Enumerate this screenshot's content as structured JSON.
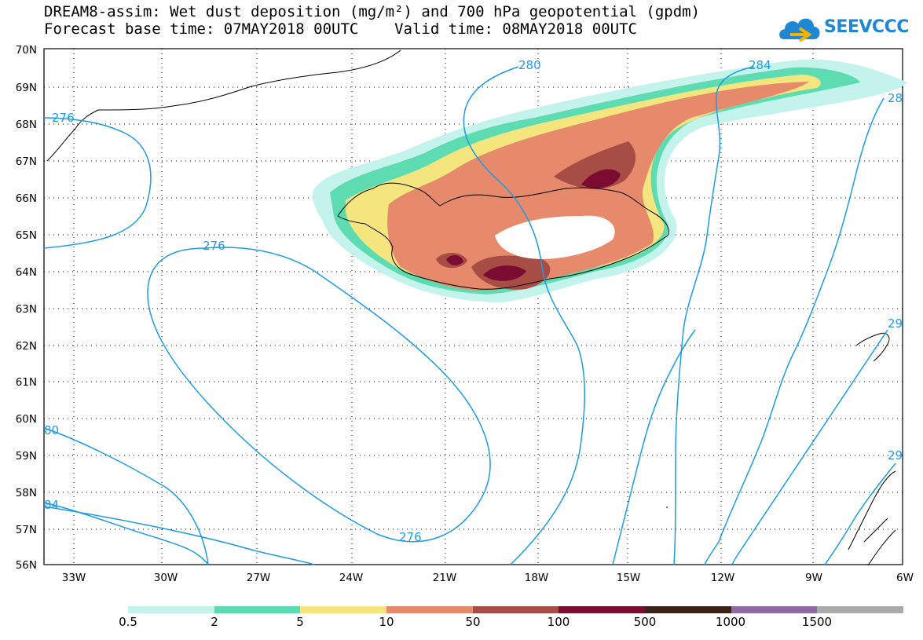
{
  "header": {
    "title_line1": "DREAM8-assim: Wet dust deposition (mg/m²) and 700 hPa geopotential (gpdm)",
    "title_line2": "Forecast base time: 07MAY2018 00UTC    Valid time: 08MAY2018 00UTC",
    "logo_text": "SEEVCCC"
  },
  "map": {
    "lat_labels": [
      "70N",
      "69N",
      "68N",
      "67N",
      "66N",
      "65N",
      "64N",
      "63N",
      "62N",
      "61N",
      "60N",
      "59N",
      "58N",
      "57N",
      "56N"
    ],
    "lon_labels": [
      "33W",
      "30W",
      "27W",
      "24W",
      "21W",
      "18W",
      "15W",
      "12W",
      "9W",
      "6W"
    ],
    "contour_labels": [
      "276",
      "276",
      "276",
      "280",
      "284",
      "28",
      "29",
      "29",
      "80",
      "84"
    ],
    "colors": {
      "contour": "#1e9be6",
      "c1": "#c4f3ec",
      "c2": "#5cdcb0",
      "c3": "#f4e57f",
      "c4": "#e7896b",
      "c5": "#a84c46",
      "c6": "#7b0c31"
    }
  },
  "legend": {
    "labels": [
      "0.5",
      "2",
      "5",
      "10",
      "50",
      "100",
      "500",
      "1000",
      "1500"
    ],
    "colors": [
      "#c4f3ec",
      "#5cdcb0",
      "#f4e57f",
      "#e7896b",
      "#a84c46",
      "#7b0c31",
      "#3a2216",
      "#8e6ba6",
      "#aaaaaa"
    ]
  }
}
